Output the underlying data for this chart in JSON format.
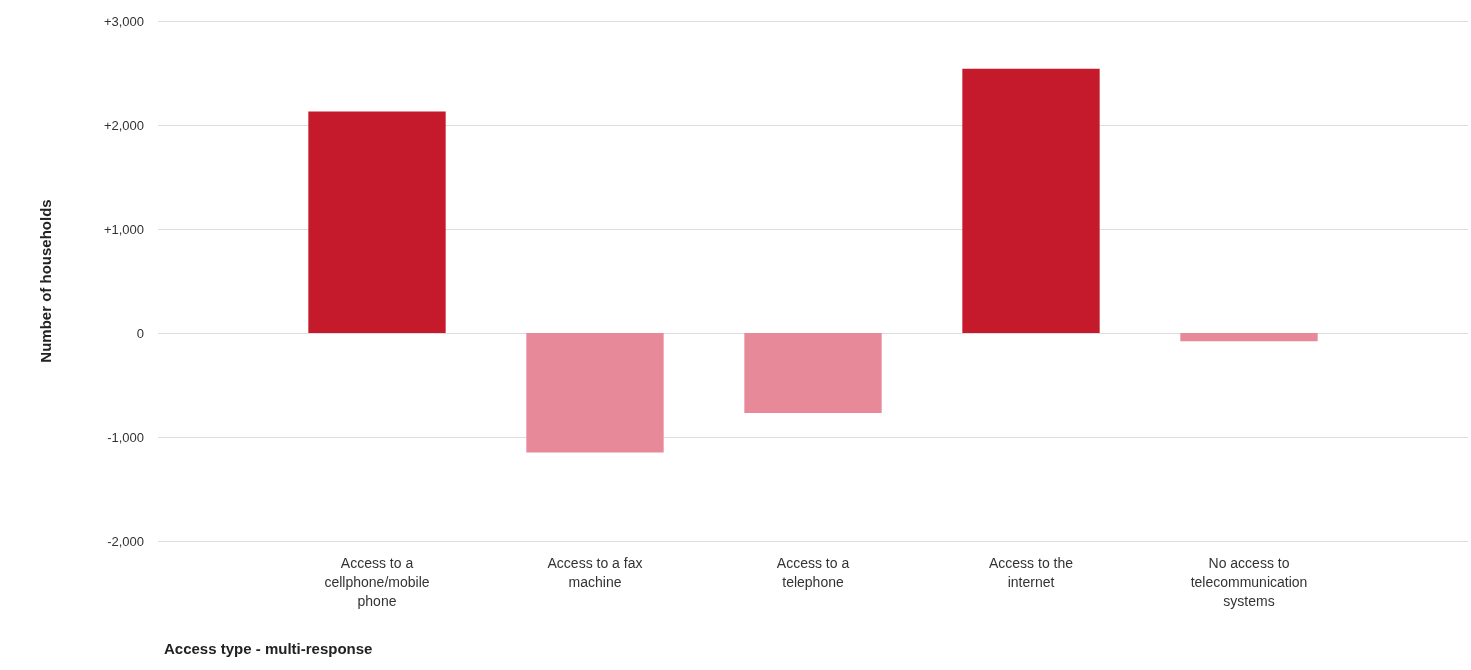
{
  "chart_data": {
    "type": "bar",
    "xlabel": "Access type - multi-response",
    "ylabel": "Number of households",
    "categories": [
      "Access to a cellphone/mobile phone",
      "Access to a fax machine",
      "Access to a telephone",
      "Access to the internet",
      "No access to telecommunication systems"
    ],
    "values": [
      2130,
      -1150,
      -770,
      2540,
      -80
    ],
    "colors": [
      "#c41a2b",
      "#e8899a",
      "#e8899a",
      "#c41a2b",
      "#e8899a"
    ],
    "ylim": [
      -2000,
      3000
    ],
    "yticks": [
      {
        "value": -2000,
        "label": "-2,000"
      },
      {
        "value": -1000,
        "label": "-1,000"
      },
      0,
      {
        "value": 1000,
        "label": "+1,000"
      },
      {
        "value": 2000,
        "label": "+2,000"
      },
      {
        "value": 3000,
        "label": "+3,000"
      }
    ],
    "grid": true
  }
}
